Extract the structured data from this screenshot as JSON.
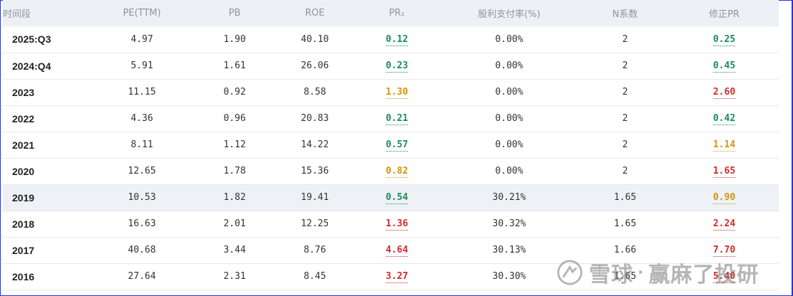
{
  "colors": {
    "good": "#1a8c5b",
    "mid": "#d4950b",
    "bad": "#d22b2b",
    "border": "#2a35d6"
  },
  "headers": [
    "时间段",
    "PE(TTM)",
    "PB",
    "ROE",
    "PR₁",
    "股利支付率(%)",
    "N系数",
    "修正PR"
  ],
  "rows": [
    {
      "period": "2025:Q3",
      "pe": "4.97",
      "pb": "1.90",
      "roe": "40.10",
      "pr": "0.12",
      "pr_level": "good",
      "payout": "0.00%",
      "n": "2",
      "adj_pr": "0.25",
      "adj_level": "good"
    },
    {
      "period": "2024:Q4",
      "pe": "5.91",
      "pb": "1.61",
      "roe": "26.06",
      "pr": "0.23",
      "pr_level": "good",
      "payout": "0.00%",
      "n": "2",
      "adj_pr": "0.45",
      "adj_level": "good"
    },
    {
      "period": "2023",
      "pe": "11.15",
      "pb": "0.92",
      "roe": "8.58",
      "pr": "1.30",
      "pr_level": "mid",
      "payout": "0.00%",
      "n": "2",
      "adj_pr": "2.60",
      "adj_level": "bad"
    },
    {
      "period": "2022",
      "pe": "4.36",
      "pb": "0.96",
      "roe": "20.83",
      "pr": "0.21",
      "pr_level": "good",
      "payout": "0.00%",
      "n": "2",
      "adj_pr": "0.42",
      "adj_level": "good"
    },
    {
      "period": "2021",
      "pe": "8.11",
      "pb": "1.12",
      "roe": "14.22",
      "pr": "0.57",
      "pr_level": "good",
      "payout": "0.00%",
      "n": "2",
      "adj_pr": "1.14",
      "adj_level": "mid"
    },
    {
      "period": "2020",
      "pe": "12.65",
      "pb": "1.78",
      "roe": "15.36",
      "pr": "0.82",
      "pr_level": "mid",
      "payout": "0.00%",
      "n": "2",
      "adj_pr": "1.65",
      "adj_level": "bad"
    },
    {
      "period": "2019",
      "pe": "10.53",
      "pb": "1.82",
      "roe": "19.41",
      "pr": "0.54",
      "pr_level": "good",
      "payout": "30.21%",
      "n": "1.65",
      "adj_pr": "0.90",
      "adj_level": "mid",
      "highlight": true
    },
    {
      "period": "2018",
      "pe": "16.63",
      "pb": "2.01",
      "roe": "12.25",
      "pr": "1.36",
      "pr_level": "bad",
      "payout": "30.32%",
      "n": "1.65",
      "adj_pr": "2.24",
      "adj_level": "bad"
    },
    {
      "period": "2017",
      "pe": "40.68",
      "pb": "3.44",
      "roe": "8.76",
      "pr": "4.64",
      "pr_level": "bad",
      "payout": "30.13%",
      "n": "1.66",
      "adj_pr": "7.70",
      "adj_level": "bad"
    },
    {
      "period": "2016",
      "pe": "27.64",
      "pb": "2.31",
      "roe": "8.45",
      "pr": "3.27",
      "pr_level": "bad",
      "payout": "30.30%",
      "n": "1.65",
      "adj_pr": "5.40",
      "adj_level": "bad"
    }
  ],
  "watermark": {
    "brand": "雪球",
    "separator": "·",
    "author": "赢麻了投研",
    "icon": "snowball-logo-icon"
  }
}
